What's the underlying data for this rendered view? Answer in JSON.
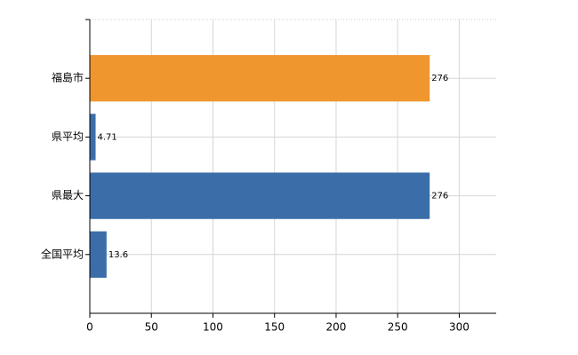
{
  "chart_data": {
    "type": "barh",
    "categories": [
      "福島市",
      "県平均",
      "県最大",
      "全国平均"
    ],
    "values": [
      276,
      4.71,
      276,
      13.6
    ],
    "colors": [
      "#f0962e",
      "#3b6ea8",
      "#3b6ea8",
      "#3b6ea8"
    ],
    "xlim": [
      0,
      330
    ],
    "xticks": [
      0,
      50,
      100,
      150,
      200,
      250,
      300
    ],
    "grid": true
  }
}
